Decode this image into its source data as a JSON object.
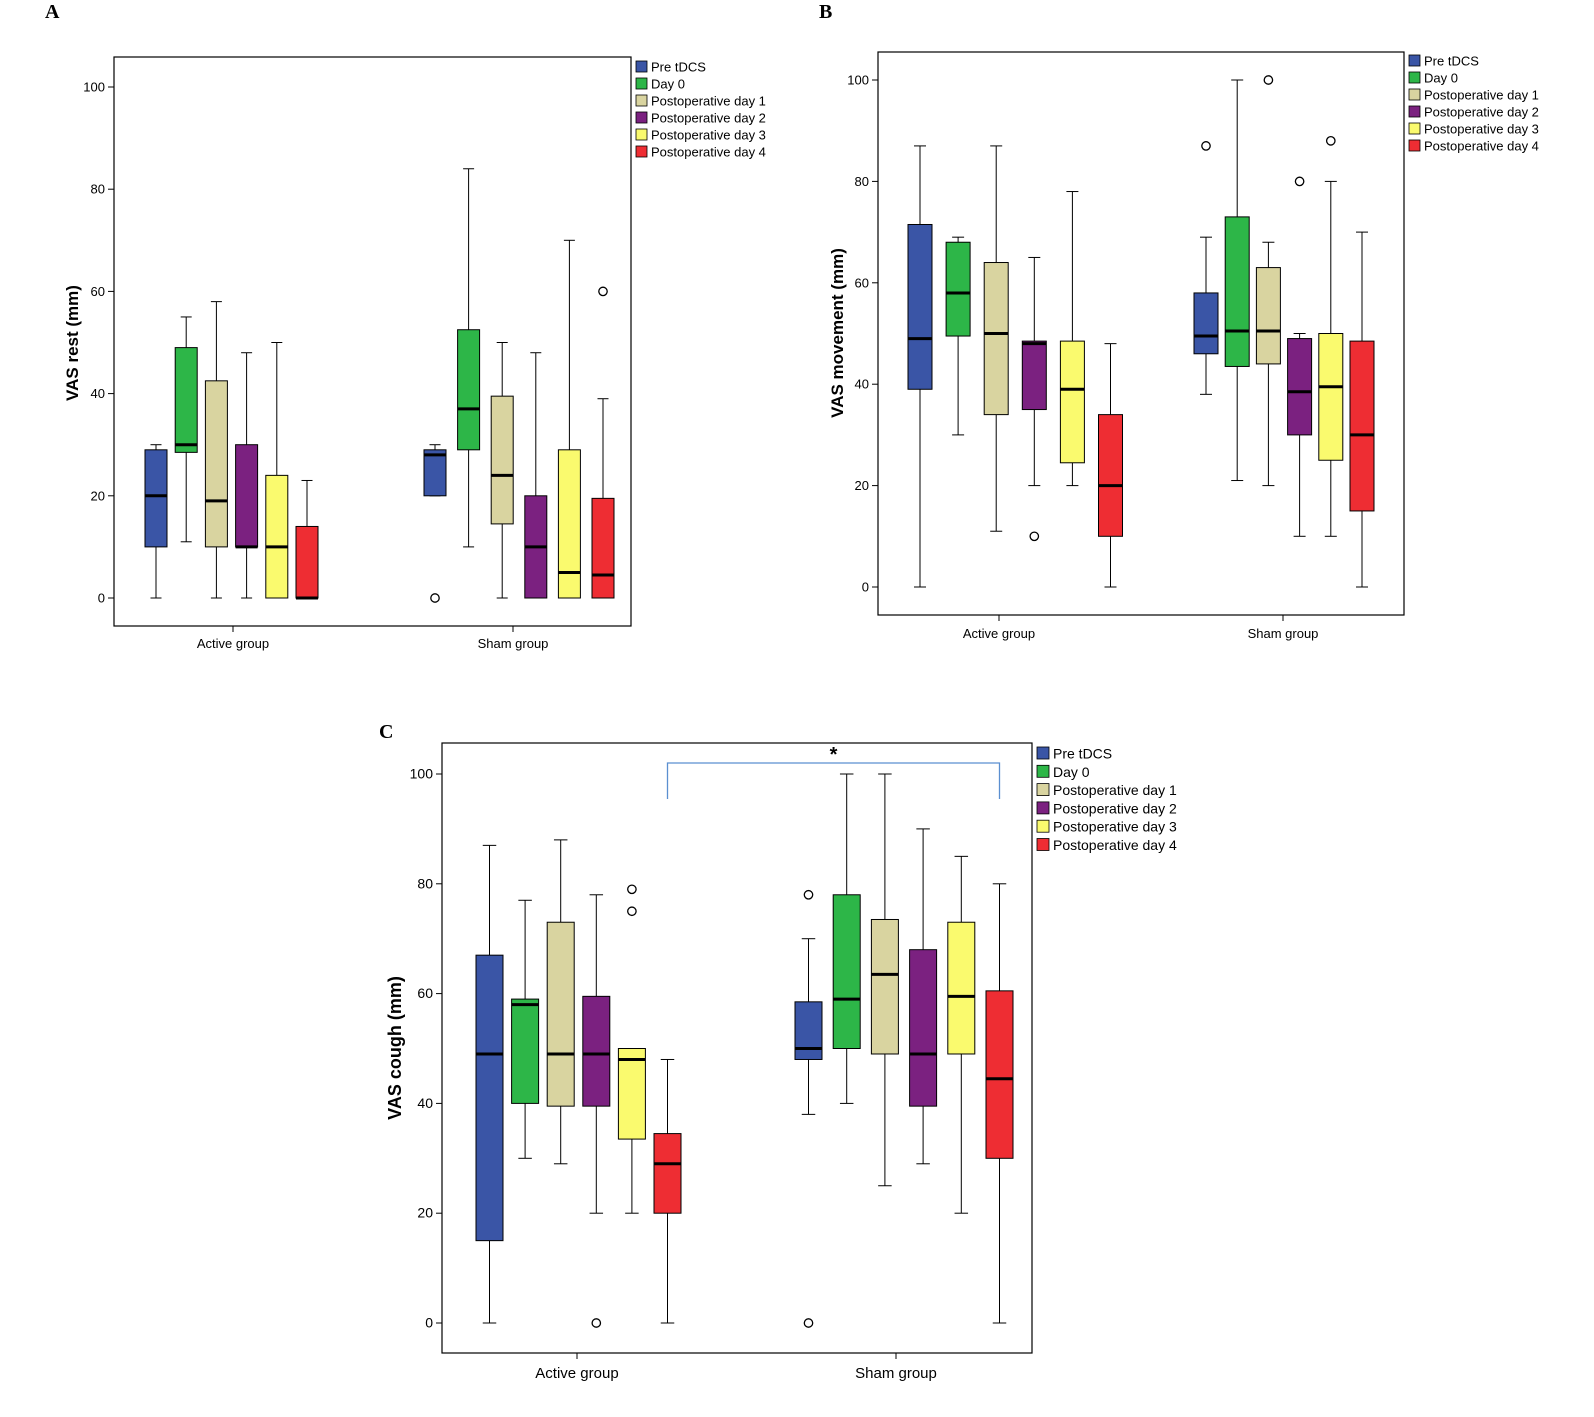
{
  "figure": {
    "series_colors": [
      "#3a55a6",
      "#2db648",
      "#d9d4a0",
      "#7b2180",
      "#fafa6e",
      "#ee2d33"
    ]
  },
  "chart_data": [
    {
      "panel": "A",
      "type": "box",
      "ylabel": "VAS rest (mm)",
      "xlabel": "",
      "ylim": [
        0,
        100
      ],
      "yticks": [
        0,
        20,
        40,
        60,
        80,
        100
      ],
      "categories": [
        "Active group",
        "Sham group"
      ],
      "legend": [
        "Pre tDCS",
        "Day 0",
        "Postoperative day 1",
        "Postoperative day 2",
        "Postoperative day 3",
        "Postoperative day 4"
      ],
      "legend_position": "top-right",
      "significance": null,
      "series": [
        {
          "name": "Pre tDCS",
          "boxes": [
            {
              "min": 0,
              "q1": 10,
              "median": 20,
              "q3": 29,
              "max": 30,
              "outliers": []
            },
            {
              "min": 20,
              "q1": 20,
              "median": 28,
              "q3": 29,
              "max": 30,
              "outliers": [
                0
              ]
            }
          ]
        },
        {
          "name": "Day 0",
          "boxes": [
            {
              "min": 11,
              "q1": 28.5,
              "median": 30,
              "q3": 49,
              "max": 55,
              "outliers": []
            },
            {
              "min": 10,
              "q1": 29,
              "median": 37,
              "q3": 52.5,
              "max": 84,
              "outliers": []
            }
          ]
        },
        {
          "name": "Postoperative day 1",
          "boxes": [
            {
              "min": 0,
              "q1": 10,
              "median": 19,
              "q3": 42.5,
              "max": 58,
              "outliers": []
            },
            {
              "min": 0,
              "q1": 14.5,
              "median": 24,
              "q3": 39.5,
              "max": 50,
              "outliers": []
            }
          ]
        },
        {
          "name": "Postoperative day 2",
          "boxes": [
            {
              "min": 0,
              "q1": 10,
              "median": 10,
              "q3": 30,
              "max": 48,
              "outliers": []
            },
            {
              "min": 0,
              "q1": 0,
              "median": 10,
              "q3": 20,
              "max": 48,
              "outliers": []
            }
          ]
        },
        {
          "name": "Postoperative day 3",
          "boxes": [
            {
              "min": 0,
              "q1": 0,
              "median": 10,
              "q3": 24,
              "max": 50,
              "outliers": []
            },
            {
              "min": 0,
              "q1": 0,
              "median": 5,
              "q3": 29,
              "max": 70,
              "outliers": []
            }
          ]
        },
        {
          "name": "Postoperative day 4",
          "boxes": [
            {
              "min": 0,
              "q1": 0,
              "median": 0,
              "q3": 14,
              "max": 23,
              "outliers": []
            },
            {
              "min": 0,
              "q1": 0,
              "median": 4.5,
              "q3": 19.5,
              "max": 39,
              "outliers": [
                60
              ]
            }
          ]
        }
      ]
    },
    {
      "panel": "B",
      "type": "box",
      "ylabel": "VAS movement (mm)",
      "xlabel": "",
      "ylim": [
        0,
        100
      ],
      "yticks": [
        0,
        20,
        40,
        60,
        80,
        100
      ],
      "categories": [
        "Active group",
        "Sham group"
      ],
      "legend": [
        "Pre tDCS",
        "Day 0",
        "Postoperative day 1",
        "Postoperative day 2",
        "Postoperative day 3",
        "Postoperative day 4"
      ],
      "legend_position": "top-right",
      "significance": null,
      "series": [
        {
          "name": "Pre tDCS",
          "boxes": [
            {
              "min": 0,
              "q1": 39,
              "median": 49,
              "q3": 71.5,
              "max": 87,
              "outliers": []
            },
            {
              "min": 38,
              "q1": 46,
              "median": 49.5,
              "q3": 58,
              "max": 69,
              "outliers": [
                87
              ]
            }
          ]
        },
        {
          "name": "Day 0",
          "boxes": [
            {
              "min": 30,
              "q1": 49.5,
              "median": 58,
              "q3": 68,
              "max": 69,
              "outliers": []
            },
            {
              "min": 21,
              "q1": 43.5,
              "median": 50.5,
              "q3": 73,
              "max": 100,
              "outliers": []
            }
          ]
        },
        {
          "name": "Postoperative day 1",
          "boxes": [
            {
              "min": 11,
              "q1": 34,
              "median": 50,
              "q3": 64,
              "max": 87,
              "outliers": []
            },
            {
              "min": 20,
              "q1": 44,
              "median": 50.5,
              "q3": 63,
              "max": 68,
              "outliers": [
                100
              ]
            }
          ]
        },
        {
          "name": "Postoperative day 2",
          "boxes": [
            {
              "min": 20,
              "q1": 35,
              "median": 48,
              "q3": 48.5,
              "max": 65,
              "outliers": [
                10
              ]
            },
            {
              "min": 10,
              "q1": 30,
              "median": 38.5,
              "q3": 49,
              "max": 50,
              "outliers": [
                80
              ]
            }
          ]
        },
        {
          "name": "Postoperative day 3",
          "boxes": [
            {
              "min": 20,
              "q1": 24.5,
              "median": 39,
              "q3": 48.5,
              "max": 78,
              "outliers": []
            },
            {
              "min": 10,
              "q1": 25,
              "median": 39.5,
              "q3": 50,
              "max": 80,
              "outliers": [
                88
              ]
            }
          ]
        },
        {
          "name": "Postoperative day 4",
          "boxes": [
            {
              "min": 0,
              "q1": 10,
              "median": 20,
              "q3": 34,
              "max": 48,
              "outliers": []
            },
            {
              "min": 0,
              "q1": 15,
              "median": 30,
              "q3": 48.5,
              "max": 70,
              "outliers": []
            }
          ]
        }
      ]
    },
    {
      "panel": "C",
      "type": "box",
      "ylabel": "VAS cough (mm)",
      "xlabel": "",
      "ylim": [
        0,
        100
      ],
      "yticks": [
        0,
        20,
        40,
        60,
        80,
        100
      ],
      "categories": [
        "Active group",
        "Sham group"
      ],
      "legend": [
        "Pre tDCS",
        "Day 0",
        "Postoperative day 1",
        "Postoperative day 2",
        "Postoperative day 3",
        "Postoperative day 4"
      ],
      "legend_position": "top-right",
      "significance": {
        "label": "*",
        "from": {
          "group": 0,
          "series": 5
        },
        "to": {
          "group": 1,
          "series": 5
        }
      },
      "series": [
        {
          "name": "Pre tDCS",
          "boxes": [
            {
              "min": 0,
              "q1": 15,
              "median": 49,
              "q3": 67,
              "max": 87,
              "outliers": []
            },
            {
              "min": 38,
              "q1": 48,
              "median": 50,
              "q3": 58.5,
              "max": 70,
              "outliers": [
                78,
                0
              ]
            }
          ]
        },
        {
          "name": "Day 0",
          "boxes": [
            {
              "min": 30,
              "q1": 40,
              "median": 58,
              "q3": 59,
              "max": 77,
              "outliers": []
            },
            {
              "min": 40,
              "q1": 50,
              "median": 59,
              "q3": 78,
              "max": 100,
              "outliers": []
            }
          ]
        },
        {
          "name": "Postoperative day 1",
          "boxes": [
            {
              "min": 29,
              "q1": 39.5,
              "median": 49,
              "q3": 73,
              "max": 88,
              "outliers": []
            },
            {
              "min": 25,
              "q1": 49,
              "median": 63.5,
              "q3": 73.5,
              "max": 100,
              "outliers": []
            }
          ]
        },
        {
          "name": "Postoperative day 2",
          "boxes": [
            {
              "min": 20,
              "q1": 39.5,
              "median": 49,
              "q3": 59.5,
              "max": 78,
              "outliers": [
                0
              ]
            },
            {
              "min": 29,
              "q1": 39.5,
              "median": 49,
              "q3": 68,
              "max": 90,
              "outliers": []
            }
          ]
        },
        {
          "name": "Postoperative day 3",
          "boxes": [
            {
              "min": 20,
              "q1": 33.5,
              "median": 48,
              "q3": 50,
              "max": 50,
              "outliers": [
                79,
                75
              ]
            },
            {
              "min": 20,
              "q1": 49,
              "median": 59.5,
              "q3": 73,
              "max": 85,
              "outliers": []
            }
          ]
        },
        {
          "name": "Postoperative day 4",
          "boxes": [
            {
              "min": 0,
              "q1": 20,
              "median": 29,
              "q3": 34.5,
              "max": 48,
              "outliers": []
            },
            {
              "min": 0,
              "q1": 30,
              "median": 44.5,
              "q3": 60.5,
              "max": 80,
              "outliers": []
            }
          ]
        }
      ]
    }
  ]
}
